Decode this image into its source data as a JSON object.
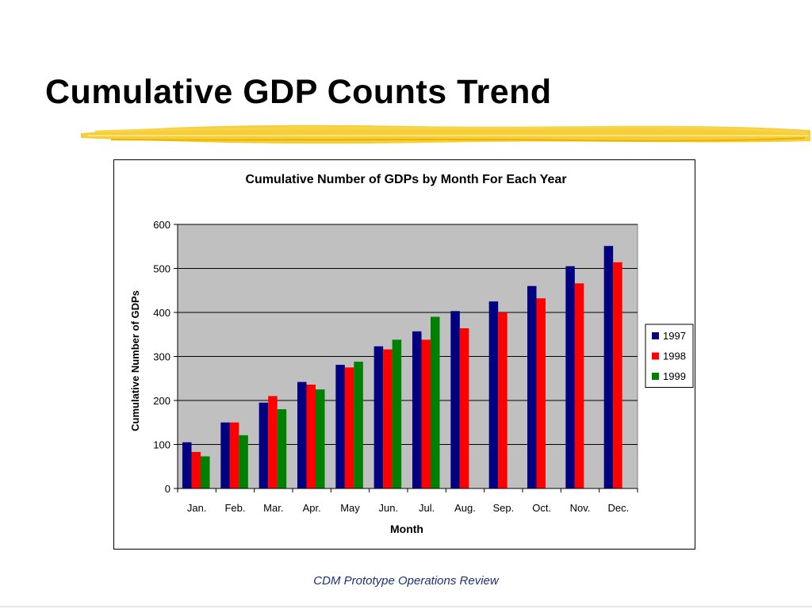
{
  "slide": {
    "title": "Cumulative GDP Counts Trend",
    "footer": "CDM Prototype Operations Review"
  },
  "colors": {
    "plot_background": "#c0c0c0",
    "brush": "#f5c518",
    "series_1997": "#000080",
    "series_1998": "#ff0000",
    "series_1999": "#008000"
  },
  "chart_data": {
    "type": "bar",
    "title": "Cumulative Number of GDPs by Month For Each Year",
    "xlabel": "Month",
    "ylabel": "Cumulative Number of GDPs",
    "ylim": [
      0,
      600
    ],
    "yticks": [
      0,
      100,
      200,
      300,
      400,
      500,
      600
    ],
    "grid": true,
    "legend_position": "right",
    "categories": [
      "Jan.",
      "Feb.",
      "Mar.",
      "Apr.",
      "May",
      "Jun.",
      "Jul.",
      "Aug.",
      "Sep.",
      "Oct.",
      "Nov.",
      "Dec."
    ],
    "series": [
      {
        "name": "1997",
        "color": "#000080",
        "values": [
          105,
          150,
          195,
          242,
          281,
          323,
          357,
          403,
          425,
          460,
          505,
          551
        ]
      },
      {
        "name": "1998",
        "color": "#ff0000",
        "values": [
          83,
          150,
          210,
          236,
          275,
          316,
          338,
          364,
          400,
          432,
          466,
          514
        ]
      },
      {
        "name": "1999",
        "color": "#008000",
        "values": [
          73,
          121,
          180,
          225,
          288,
          338,
          390,
          null,
          null,
          null,
          null,
          null
        ]
      }
    ]
  }
}
